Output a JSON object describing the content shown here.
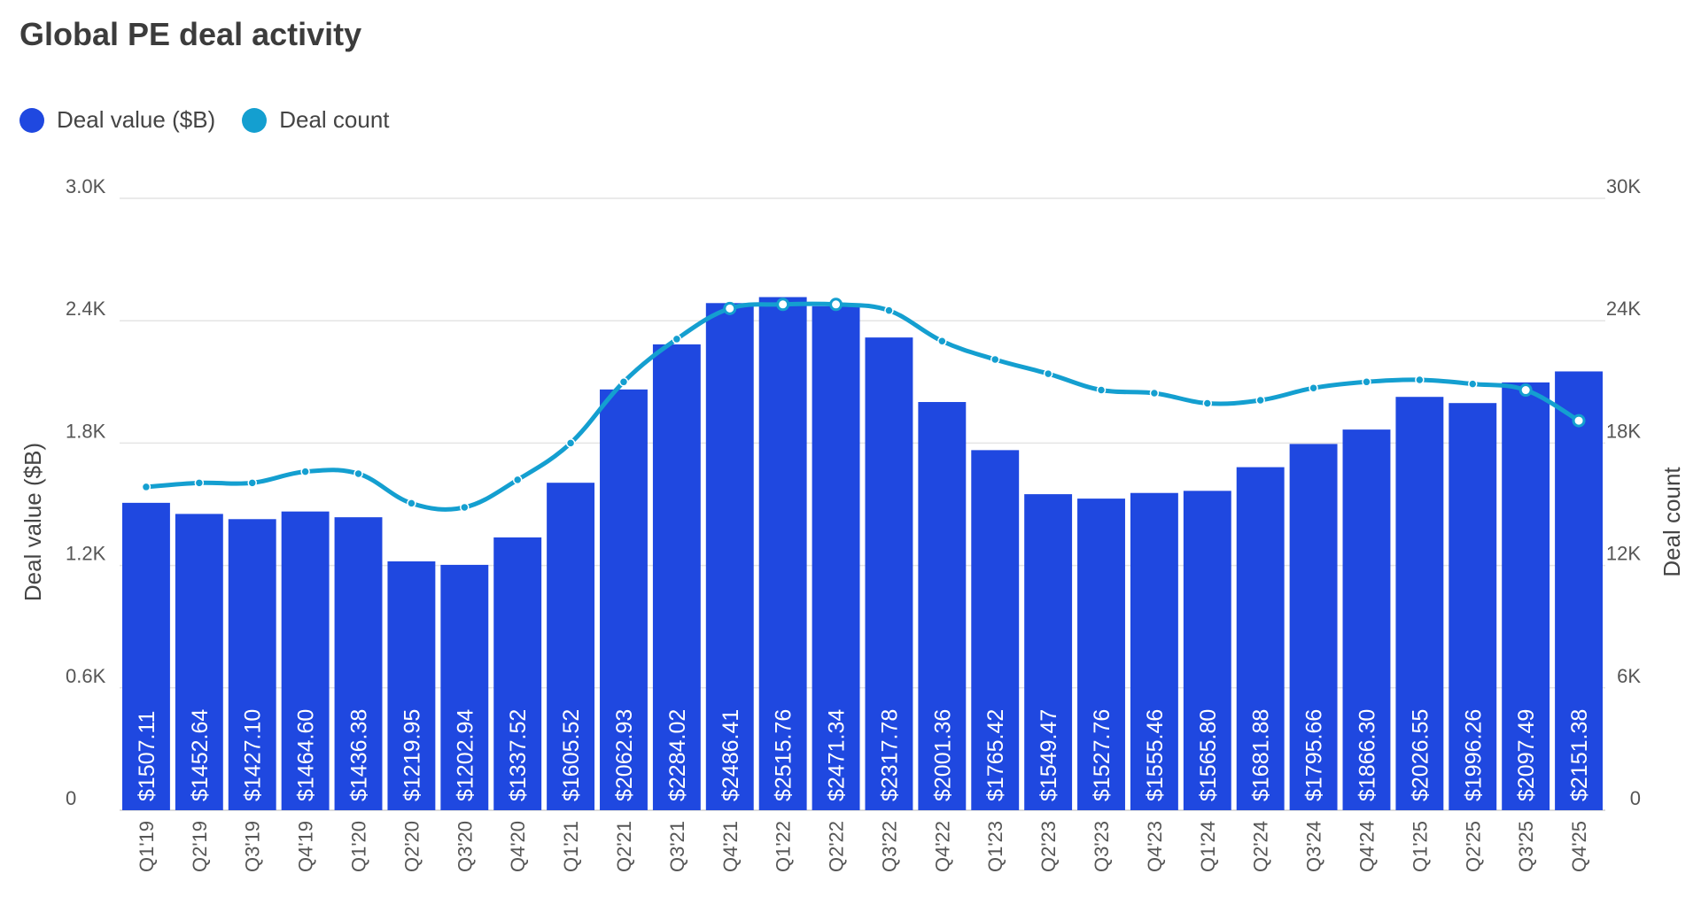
{
  "chart_data": {
    "type": "bar",
    "title": "Global PE deal activity",
    "categories": [
      "Q1'19",
      "Q2'19",
      "Q3'19",
      "Q4'19",
      "Q1'20",
      "Q2'20",
      "Q3'20",
      "Q4'20",
      "Q1'21",
      "Q2'21",
      "Q3'21",
      "Q4'21",
      "Q1'22",
      "Q2'22",
      "Q3'22",
      "Q4'22",
      "Q1'23",
      "Q2'23",
      "Q3'23",
      "Q4'23",
      "Q1'24",
      "Q2'24",
      "Q3'24",
      "Q4'24",
      "Q1'25",
      "Q2'25",
      "Q3'25",
      "Q4'25"
    ],
    "series": [
      {
        "name": "Deal value ($B)",
        "type": "bar",
        "axis": "left",
        "color": "#1f48e0",
        "values": [
          1507.11,
          1452.64,
          1427.1,
          1464.6,
          1436.38,
          1219.95,
          1202.94,
          1337.52,
          1605.52,
          2062.93,
          2284.02,
          2486.41,
          2515.76,
          2471.34,
          2317.78,
          2001.36,
          1765.42,
          1549.47,
          1527.76,
          1555.46,
          1565.8,
          1681.88,
          1795.66,
          1866.3,
          2026.55,
          1996.26,
          2097.49,
          2151.38
        ],
        "labels": [
          "$1507.11",
          "$1452.64",
          "$1427.10",
          "$1464.60",
          "$1436.38",
          "$1219.95",
          "$1202.94",
          "$1337.52",
          "$1605.52",
          "$2062.93",
          "$2284.02",
          "$2486.41",
          "$2515.76",
          "$2471.34",
          "$2317.78",
          "$2001.36",
          "$1765.42",
          "$1549.47",
          "$1527.76",
          "$1555.46",
          "$1565.80",
          "$1681.88",
          "$1795.66",
          "$1866.30",
          "$2026.55",
          "$1996.26",
          "$2097.49",
          "$2151.38"
        ]
      },
      {
        "name": "Deal count",
        "type": "line",
        "axis": "right",
        "color": "#149fd0",
        "values": [
          15850,
          16050,
          16050,
          16600,
          16500,
          15050,
          14850,
          16200,
          18000,
          21000,
          23100,
          24600,
          24800,
          24800,
          24500,
          23000,
          22100,
          21400,
          20600,
          20450,
          19950,
          20100,
          20700,
          21000,
          21100,
          20900,
          20600,
          19100
        ]
      }
    ],
    "ylabel": "Deal value ($B)",
    "y2label": "Deal count",
    "ylim": [
      0,
      3000
    ],
    "y2lim": [
      0,
      30000
    ],
    "yticks": [
      "0",
      "0.6K",
      "1.2K",
      "1.8K",
      "2.4K",
      "3.0K"
    ],
    "y2ticks": [
      "0",
      "6K",
      "12K",
      "18K",
      "24K",
      "30K"
    ],
    "grid": true,
    "legend": "top-left"
  }
}
